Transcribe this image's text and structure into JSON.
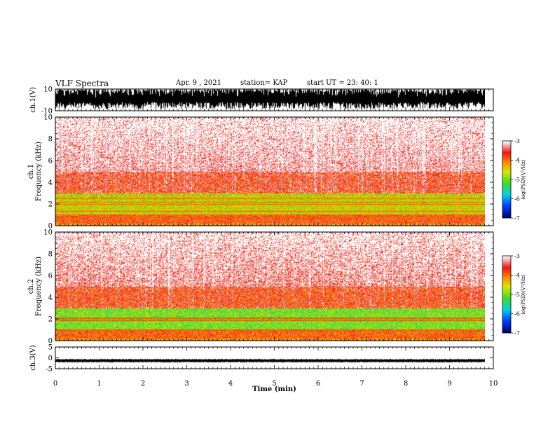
{
  "header": {
    "title": "VLF Spectra",
    "date": "Apr. 9 , 2021",
    "station": "station= KAP",
    "start": "start UT = 23: 40: 1"
  },
  "chart_data": [
    {
      "type": "line",
      "name": "ch1-waveform",
      "ylabel": "ch.1(V)",
      "ylim": [
        -10,
        10
      ],
      "yticks": [
        "10",
        "-10"
      ],
      "xlim": [
        0,
        10
      ],
      "x_end": 9.83,
      "description_level": "dense oscillation filling roughly -8 to +10 V"
    },
    {
      "type": "heatmap",
      "name": "ch1-spectrogram",
      "ylabel": "ch.1\nFrequency (kHz)",
      "ylabel_lines": [
        "ch.1",
        "Frequency (kHz)"
      ],
      "ylim": [
        0,
        10
      ],
      "yticks": [
        "0",
        "2",
        "4",
        "6",
        "8",
        "10"
      ],
      "xlim": [
        0,
        10
      ],
      "x_end": 9.83,
      "colorbar": {
        "label": "log(PSD)(V²/Hz)",
        "ticks": [
          "-3",
          "-4",
          "-5",
          "-6",
          "-7"
        ],
        "range": [
          -7,
          -3
        ]
      },
      "bands_khz": [
        {
          "from": 0,
          "to": 0.25,
          "level": -4.2
        },
        {
          "from": 0.25,
          "to": 1.0,
          "level": -3.8
        },
        {
          "from": 1.0,
          "to": 3.0,
          "level": -4.6
        },
        {
          "from": 3.0,
          "to": 5.0,
          "level": -3.6
        },
        {
          "from": 5.0,
          "to": 10.0,
          "level": -3.2
        }
      ],
      "lines_khz": [
        0.4,
        0.6,
        0.8,
        1.05,
        1.35,
        2.0,
        2.2,
        2.5
      ]
    },
    {
      "type": "heatmap",
      "name": "ch2-spectrogram",
      "ylabel": "ch.2\nFrequency (kHz)",
      "ylabel_lines": [
        "ch.2",
        "Frequency (kHz)"
      ],
      "ylim": [
        0,
        10
      ],
      "yticks": [
        "0",
        "2",
        "4",
        "6",
        "8",
        "10"
      ],
      "xlim": [
        0,
        10
      ],
      "x_end": 9.83,
      "colorbar": {
        "label": "log(PSD)(V²/Hz)",
        "ticks": [
          "-3",
          "-4",
          "-5",
          "-6",
          "-7"
        ],
        "range": [
          -7,
          -3
        ]
      },
      "bands_khz": [
        {
          "from": 0,
          "to": 0.25,
          "level": -4.2
        },
        {
          "from": 0.25,
          "to": 1.0,
          "level": -3.9
        },
        {
          "from": 1.0,
          "to": 3.0,
          "level": -5.0
        },
        {
          "from": 3.0,
          "to": 5.0,
          "level": -3.7
        },
        {
          "from": 5.0,
          "to": 10.0,
          "level": -3.3
        }
      ],
      "lines_khz": [
        0.4,
        1.0,
        1.9,
        2.1
      ]
    },
    {
      "type": "line",
      "name": "ch3-waveform",
      "ylabel": "ch.3(V)",
      "ylim": [
        -5,
        5
      ],
      "yticks": [
        "5",
        "0",
        "-5"
      ],
      "xlim": [
        0,
        10
      ],
      "x_end": 9.83,
      "xticks": [
        "0",
        "1",
        "2",
        "3",
        "4",
        "5",
        "6",
        "7",
        "8",
        "9",
        "10"
      ],
      "xlabel": "Time (min)",
      "description_level": "flat band near -0.6 to -2 V"
    }
  ]
}
